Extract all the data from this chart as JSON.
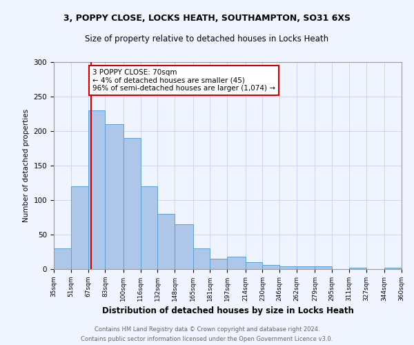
{
  "title1": "3, POPPY CLOSE, LOCKS HEATH, SOUTHAMPTON, SO31 6XS",
  "title2": "Size of property relative to detached houses in Locks Heath",
  "xlabel": "Distribution of detached houses by size in Locks Heath",
  "ylabel": "Number of detached properties",
  "footer1": "Contains HM Land Registry data © Crown copyright and database right 2024.",
  "footer2": "Contains public sector information licensed under the Open Government Licence v3.0.",
  "bar_edges": [
    35,
    51,
    67,
    83,
    100,
    116,
    132,
    148,
    165,
    181,
    197,
    214,
    230,
    246,
    262,
    279,
    295,
    311,
    327,
    344,
    360
  ],
  "bar_heights": [
    30,
    120,
    230,
    210,
    190,
    120,
    80,
    65,
    30,
    15,
    18,
    10,
    6,
    4,
    4,
    4,
    0,
    2,
    0,
    2
  ],
  "bar_color": "#aec6e8",
  "bar_edgecolor": "#5a9fd4",
  "property_line_x": 70,
  "property_line_color": "#cc0000",
  "annotation_text": "3 POPPY CLOSE: 70sqm\n← 4% of detached houses are smaller (45)\n96% of semi-detached houses are larger (1,074) →",
  "annotation_box_color": "#ffffff",
  "annotation_box_edgecolor": "#cc0000",
  "ylim": [
    0,
    300
  ],
  "yticks": [
    0,
    50,
    100,
    150,
    200,
    250,
    300
  ],
  "tick_labels": [
    "35sqm",
    "51sqm",
    "67sqm",
    "83sqm",
    "100sqm",
    "116sqm",
    "132sqm",
    "148sqm",
    "165sqm",
    "181sqm",
    "197sqm",
    "214sqm",
    "230sqm",
    "246sqm",
    "262sqm",
    "279sqm",
    "295sqm",
    "311sqm",
    "327sqm",
    "344sqm",
    "360sqm"
  ],
  "background_color": "#f0f4ff",
  "grid_color": "#c8d8ee"
}
